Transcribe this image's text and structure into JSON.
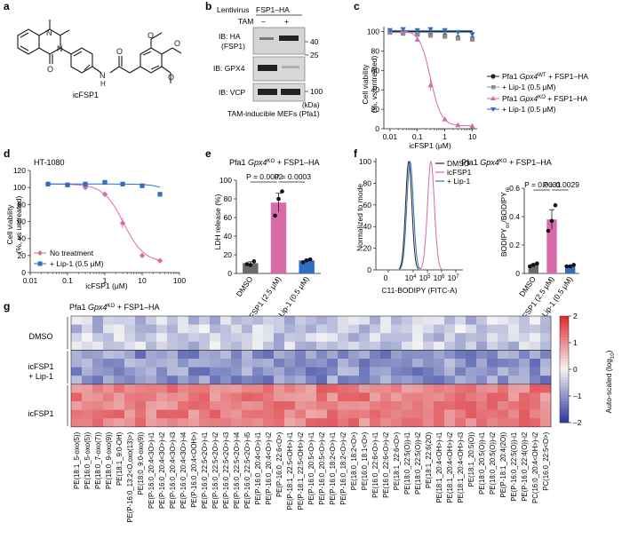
{
  "panel_letters": {
    "a": "a",
    "b": "b",
    "c": "c",
    "d": "d",
    "e": "e",
    "f": "f",
    "g": "g"
  },
  "colors": {
    "pink": "#d96aa8",
    "blue": "#2f6fc2",
    "black": "#222222",
    "grey": "#8c8c8c",
    "dark_grey": "#6b6b6b"
  },
  "panel_a": {
    "compound_name": "icFSP1"
  },
  "panel_b": {
    "header_left": "Lentivirus",
    "header_right": "FSP1–HA",
    "tam_label": "TAM",
    "minus": "–",
    "plus": "+",
    "blots": [
      {
        "label": "IB: HA",
        "sublabel": "(FSP1)"
      },
      {
        "label": "IB: GPX4",
        "sublabel": ""
      },
      {
        "label": "IB: VCP",
        "sublabel": ""
      }
    ],
    "mw_markers": [
      "40",
      "25",
      "100"
    ],
    "kda": "(kDa)",
    "caption": "TAM-inducible MEFs (Pfa1)"
  },
  "chart_data": [
    {
      "panel": "c",
      "type": "scatter",
      "title": "",
      "xlabel": "icFSP1 (μM)",
      "ylabel": "Cell viability (%, vs untreated)",
      "xscale": "log",
      "xticks": [
        "0.01",
        "0.1",
        "1",
        "10"
      ],
      "yticks": [
        "0",
        "20",
        "40",
        "60",
        "80",
        "100"
      ],
      "ylim": [
        0,
        105
      ],
      "series": [
        {
          "name": "Pfa1 Gpx4WT + FSP1–HA",
          "x": [
            0.01,
            0.03,
            0.1,
            0.3,
            1,
            3,
            10
          ],
          "y": [
            100,
            99,
            98,
            97,
            96,
            94,
            93
          ],
          "color": "#222222"
        },
        {
          "name": "+ Lip-1 (0.5 μM)",
          "x": [
            0.01,
            0.03,
            0.1,
            0.3,
            1,
            3,
            10
          ],
          "y": [
            99,
            98,
            97,
            96,
            95,
            93,
            92
          ],
          "color": "#8c8c8c"
        },
        {
          "name": "Pfa1 Gpx4KO + FSP1–HA",
          "x": [
            0.01,
            0.03,
            0.1,
            0.3,
            1,
            3,
            10
          ],
          "y": [
            101,
            100,
            92,
            45,
            10,
            4,
            3
          ],
          "color": "#d96aa8"
        },
        {
          "name": "+ Lip-1 (0.5 μM)",
          "x": [
            0.01,
            0.03,
            0.1,
            0.3,
            1,
            3,
            10
          ],
          "y": [
            101,
            102,
            101,
            102,
            101,
            99,
            97
          ],
          "color": "#2f6fc2"
        }
      ],
      "legend": [
        {
          "main": "Pfa1 ",
          "ital": "Gpx4",
          "sup": "WT",
          "rest": " + FSP1–HA"
        },
        {
          "main": "+ Lip-1 (0.5 μM)",
          "ital": "",
          "sup": "",
          "rest": ""
        },
        {
          "main": "Pfa1 ",
          "ital": "Gpx4",
          "sup": "KO",
          "rest": " + FSP1–HA"
        },
        {
          "main": "+ Lip-1 (0.5 μM)",
          "ital": "",
          "sup": "",
          "rest": ""
        }
      ]
    },
    {
      "panel": "d",
      "type": "scatter",
      "title": "HT-1080",
      "xlabel": "icFSP1 (μM)",
      "ylabel": "Cell viability (%, vs untreated)",
      "xscale": "log",
      "xticks": [
        "0.01",
        "0.1",
        "1",
        "10",
        "100"
      ],
      "yticks": [
        "0",
        "20",
        "40",
        "60",
        "80",
        "100",
        "120"
      ],
      "ylim": [
        0,
        120
      ],
      "series": [
        {
          "name": "No treatment",
          "x": [
            0.03,
            0.1,
            0.3,
            1,
            3,
            10,
            30
          ],
          "y": [
            104,
            103,
            100,
            92,
            58,
            20,
            14
          ],
          "color": "#d96aa8"
        },
        {
          "name": "+ Lip-1 (0.5 μM)",
          "x": [
            0.03,
            0.1,
            0.3,
            1,
            3,
            10,
            30
          ],
          "y": [
            104,
            103,
            104,
            106,
            104,
            102,
            92
          ],
          "color": "#2f6fc2"
        }
      ]
    },
    {
      "panel": "e",
      "type": "bar",
      "title": "Pfa1 Gpx4KO + FSP1–HA",
      "ylabel": "LDH release (%)",
      "categories": [
        "DMSO",
        "icFSP1 (2.5 μM)",
        "+ Lip-1 (0.5 μM)"
      ],
      "values": [
        11,
        76,
        14
      ],
      "points": [
        [
          10,
          9,
          13
        ],
        [
          62,
          80,
          88
        ],
        [
          12,
          14,
          15
        ]
      ],
      "ylim": [
        0,
        100
      ],
      "yticks": [
        "0",
        "20",
        "40",
        "60",
        "80",
        "100"
      ],
      "colors": [
        "#6b6b6b",
        "#d96aa8",
        "#2f6fc2"
      ],
      "pvalues": [
        "P = 0.0002",
        "P = 0.0003"
      ]
    },
    {
      "panel": "f-histogram",
      "type": "line",
      "xlabel": "C11-BODIPY (FITC-A)",
      "ylabel": "Normalized to mode",
      "xticks": [
        "0",
        "10^4",
        "10^5",
        "10^6",
        "10^7"
      ],
      "yticks": [
        "0",
        "20",
        "40",
        "60",
        "80",
        "100"
      ],
      "legend": [
        "DMSO",
        "icFSP1",
        "+ Lip-1"
      ],
      "colors": [
        "#222222",
        "#d96aa8",
        "#2f6fc2"
      ],
      "title": "Pfa1 Gpx4KO + FSP1–HA"
    },
    {
      "panel": "f-bar",
      "type": "bar",
      "ylabel": "BODIPYox/BODIPYre",
      "categories": [
        "DMSO",
        "icFSP1 (2.5 μM)",
        "+ Lip-1 (0.5 μM)"
      ],
      "values": [
        0.06,
        0.38,
        0.05
      ],
      "points": [
        [
          0.05,
          0.06,
          0.07
        ],
        [
          0.3,
          0.37,
          0.48
        ],
        [
          0.05,
          0.05,
          0.06
        ]
      ],
      "ylim": [
        0,
        0.6
      ],
      "yticks": [
        "0",
        "0.2",
        "0.4",
        "0.6"
      ],
      "colors": [
        "#6b6b6b",
        "#d96aa8",
        "#2f6fc2"
      ],
      "pvalues": [
        "P = 0.0031",
        "P = 0.0029"
      ]
    },
    {
      "panel": "g",
      "type": "heatmap",
      "title": "Pfa1 Gpx4KO + FSP1–HA",
      "row_groups": [
        "DMSO",
        "icFSP1 + Lip-1",
        "icFSP1"
      ],
      "colorbar": {
        "label": "Auto-scaled (log10)",
        "ticks": [
          "2",
          "1",
          "0",
          "–1",
          "–2"
        ],
        "range": [
          -2,
          2
        ]
      },
      "columns": [
        "PE(18:1_5-oxo(5))",
        "PE(16:0_5-oxo(5))",
        "PE(18:0_7-oxo(7))",
        "PE(18:0_9-oxo(9))",
        "PE(18:1_9:0-OH)",
        "PE(P-16:0_13:2<O,oxo(13)>)",
        "PE(18:0_9:0-oxo(9))",
        "PE(P-16:0_20:4<3O>)-i1",
        "PE(P-16:0_20:4<3O>)-i2",
        "PE(P-16:0_20:4<3O>)-i3",
        "PE(P-16:0_20:4<3O>)-i4",
        "PE(P-16:0_20:4<OOH>)",
        "PE(P-16:0_22:5<2O>)-i1",
        "PE(P-16:0_22:5<2O>)-i2",
        "PE(P-16:0_22:5<2O>)-i3",
        "PE(P-16:0_22:5<2O>)-i4",
        "PE(P-16:0_22:5<2O>)-i5",
        "PE(P-16:0_20:4<O>)-i1",
        "PE(P-16:0_20:4<O>)-i2",
        "PE(P-16:0_22:6<O>)",
        "PE(P-18:1_22:5<OH>)-i1",
        "PE(P-18:1_22:5<OH>)-i2",
        "PE(P-16:0_20:5<O>)-i1",
        "PE(P-16:0_20:5<O>)-i2",
        "PE(P-16:0_18:2<O>)-i1",
        "PE(P-16:0_18:2<O>)-i2",
        "PE(18:0_18:2<O>)",
        "PE(16:0_18:1<O>)",
        "PE(16:0_22:6<O>)-i1",
        "PE(16:0_22:6<O>)-i2",
        "PE(18:1_22:6<O>)",
        "PE(18:0_22:5(O))-i1",
        "PE(18:0_22:5(O))-i2",
        "PE(18:1_22:6(2O)",
        "PE(18:1_20:4<OH>)-i1",
        "PE(18:1_20:4<OH>)-i2",
        "PE(18:1_20:4<OH>)-i3",
        "PE(18:1_20:5(O))",
        "PE(18:0_20:5(O))-i1",
        "PE(18:0_20:5(O))-i2",
        "PE(P-18:1_20:4(2O))",
        "PE(P-16:0_22:5(O))-i1",
        "PE(P-16:0_22:4(O))-i2",
        "PC(16:0_20:4<OH>)-i2",
        "PC(16:0_22:5<O>)"
      ]
    }
  ],
  "panel_c_ylabel_lines": [
    "Cell viability",
    "(%, vs untreated)"
  ],
  "panel_d_ylabel_lines": [
    "Cell viability",
    "(%, vs untreated)"
  ],
  "panel_e_title": {
    "pre": "Pfa1 ",
    "ital": "Gpx4",
    "sup": "KO",
    "post": " + FSP1–HA"
  },
  "panel_f_title": {
    "pre": "Pfa1 ",
    "ital": "Gpx4",
    "sup": "KO",
    "post": " + FSP1–HA"
  },
  "panel_g_title": {
    "pre": "Pfa1 ",
    "ital": "Gpx4",
    "sup": "KO",
    "post": " + FSP1–HA"
  },
  "panel_f_bar_ylabel": {
    "a": "BODIPY",
    "b": "ox",
    "c": "/BODIPY",
    "d": "re"
  }
}
